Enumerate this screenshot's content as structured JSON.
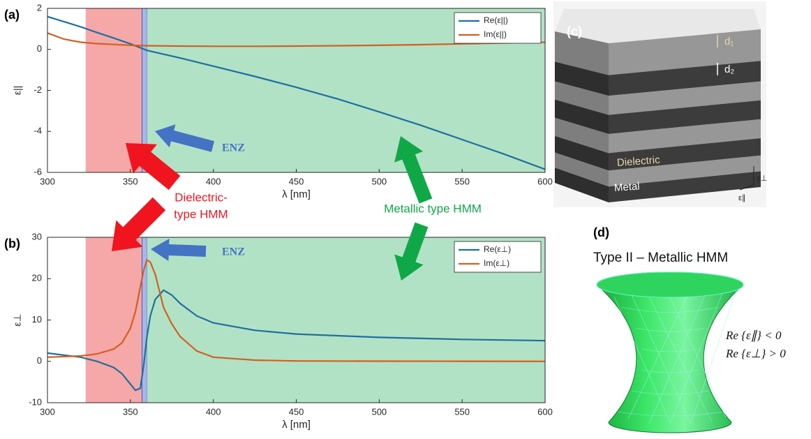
{
  "chart_data": [
    {
      "type": "line",
      "label": "(a)",
      "xlabel": "λ [nm]",
      "ylabel": "ε||",
      "xlim": [
        300,
        600
      ],
      "ylim": [
        -6,
        2
      ],
      "xticks": [
        300,
        350,
        400,
        450,
        500,
        550,
        600
      ],
      "yticks": [
        -6,
        -4,
        -2,
        0,
        2
      ],
      "legend": "top-right",
      "regions": [
        {
          "start": 323,
          "end": 357,
          "color": "#f6a8a8"
        },
        {
          "start": 357,
          "end": 360,
          "color": "#aab6e6"
        },
        {
          "start": 360,
          "end": 600,
          "color": "#b2e2c6"
        }
      ],
      "x": [
        300,
        310,
        320,
        330,
        340,
        350,
        360,
        380,
        400,
        425,
        450,
        475,
        500,
        525,
        550,
        575,
        600
      ],
      "series": [
        {
          "name": "Re(ε||)",
          "color": "#1f6f9e",
          "values": [
            1.6,
            1.35,
            1.1,
            0.82,
            0.55,
            0.27,
            -0.05,
            -0.42,
            -0.82,
            -1.32,
            -1.85,
            -2.42,
            -3.05,
            -3.7,
            -4.4,
            -5.1,
            -5.85
          ]
        },
        {
          "name": "Im(ε||)",
          "color": "#d2601f",
          "values": [
            0.8,
            0.5,
            0.35,
            0.28,
            0.24,
            0.2,
            0.18,
            0.16,
            0.15,
            0.15,
            0.16,
            0.18,
            0.2,
            0.23,
            0.27,
            0.31,
            0.35
          ]
        }
      ],
      "annotation": "ENZ"
    },
    {
      "type": "line",
      "label": "(b)",
      "xlabel": "λ [nm]",
      "ylabel": "ε⊥",
      "xlim": [
        300,
        600
      ],
      "ylim": [
        -10,
        30
      ],
      "xticks": [
        300,
        350,
        400,
        450,
        500,
        550,
        600
      ],
      "yticks": [
        -10,
        0,
        10,
        20,
        30
      ],
      "legend": "top-right",
      "regions": [
        {
          "start": 323,
          "end": 357,
          "color": "#f6a8a8"
        },
        {
          "start": 357,
          "end": 360,
          "color": "#aab6e6"
        },
        {
          "start": 360,
          "end": 600,
          "color": "#b2e2c6"
        }
      ],
      "x": [
        300,
        320,
        330,
        340,
        345,
        350,
        353,
        356,
        358,
        360,
        362,
        365,
        370,
        375,
        380,
        390,
        400,
        425,
        450,
        500,
        550,
        600
      ],
      "series": [
        {
          "name": "Re(ε⊥)",
          "color": "#1f6f9e",
          "values": [
            2,
            1,
            0,
            -1.5,
            -3,
            -5.5,
            -7,
            -6.5,
            -1,
            6,
            11,
            15,
            17.2,
            16,
            14,
            11,
            9.3,
            7.5,
            6.6,
            5.8,
            5.3,
            5.0
          ]
        },
        {
          "name": "Im(ε⊥)",
          "color": "#d2601f",
          "values": [
            1,
            1.3,
            1.8,
            3,
            4.5,
            8,
            12,
            18,
            22,
            24.5,
            24,
            21,
            13,
            9,
            6,
            2.5,
            1,
            0.3,
            0.1,
            0.05,
            0.02,
            0
          ]
        }
      ],
      "annotation": "ENZ"
    }
  ],
  "annotations": {
    "dielectric": [
      "Dielectric-",
      "type HMM"
    ],
    "metallic": "Metallic type HMM"
  },
  "panel_c": {
    "label": "(c)",
    "d1": "d₁",
    "d2": "d₂",
    "dielectric": "Dielectric",
    "metal": "Metal",
    "eps_perp": "ε⊥",
    "eps_par": "ε∥"
  },
  "panel_d": {
    "label": "(d)",
    "title": "Type II – Metallic HMM",
    "conditions": [
      "Re {ε∥} < 0",
      "Re {ε⊥} > 0"
    ]
  }
}
